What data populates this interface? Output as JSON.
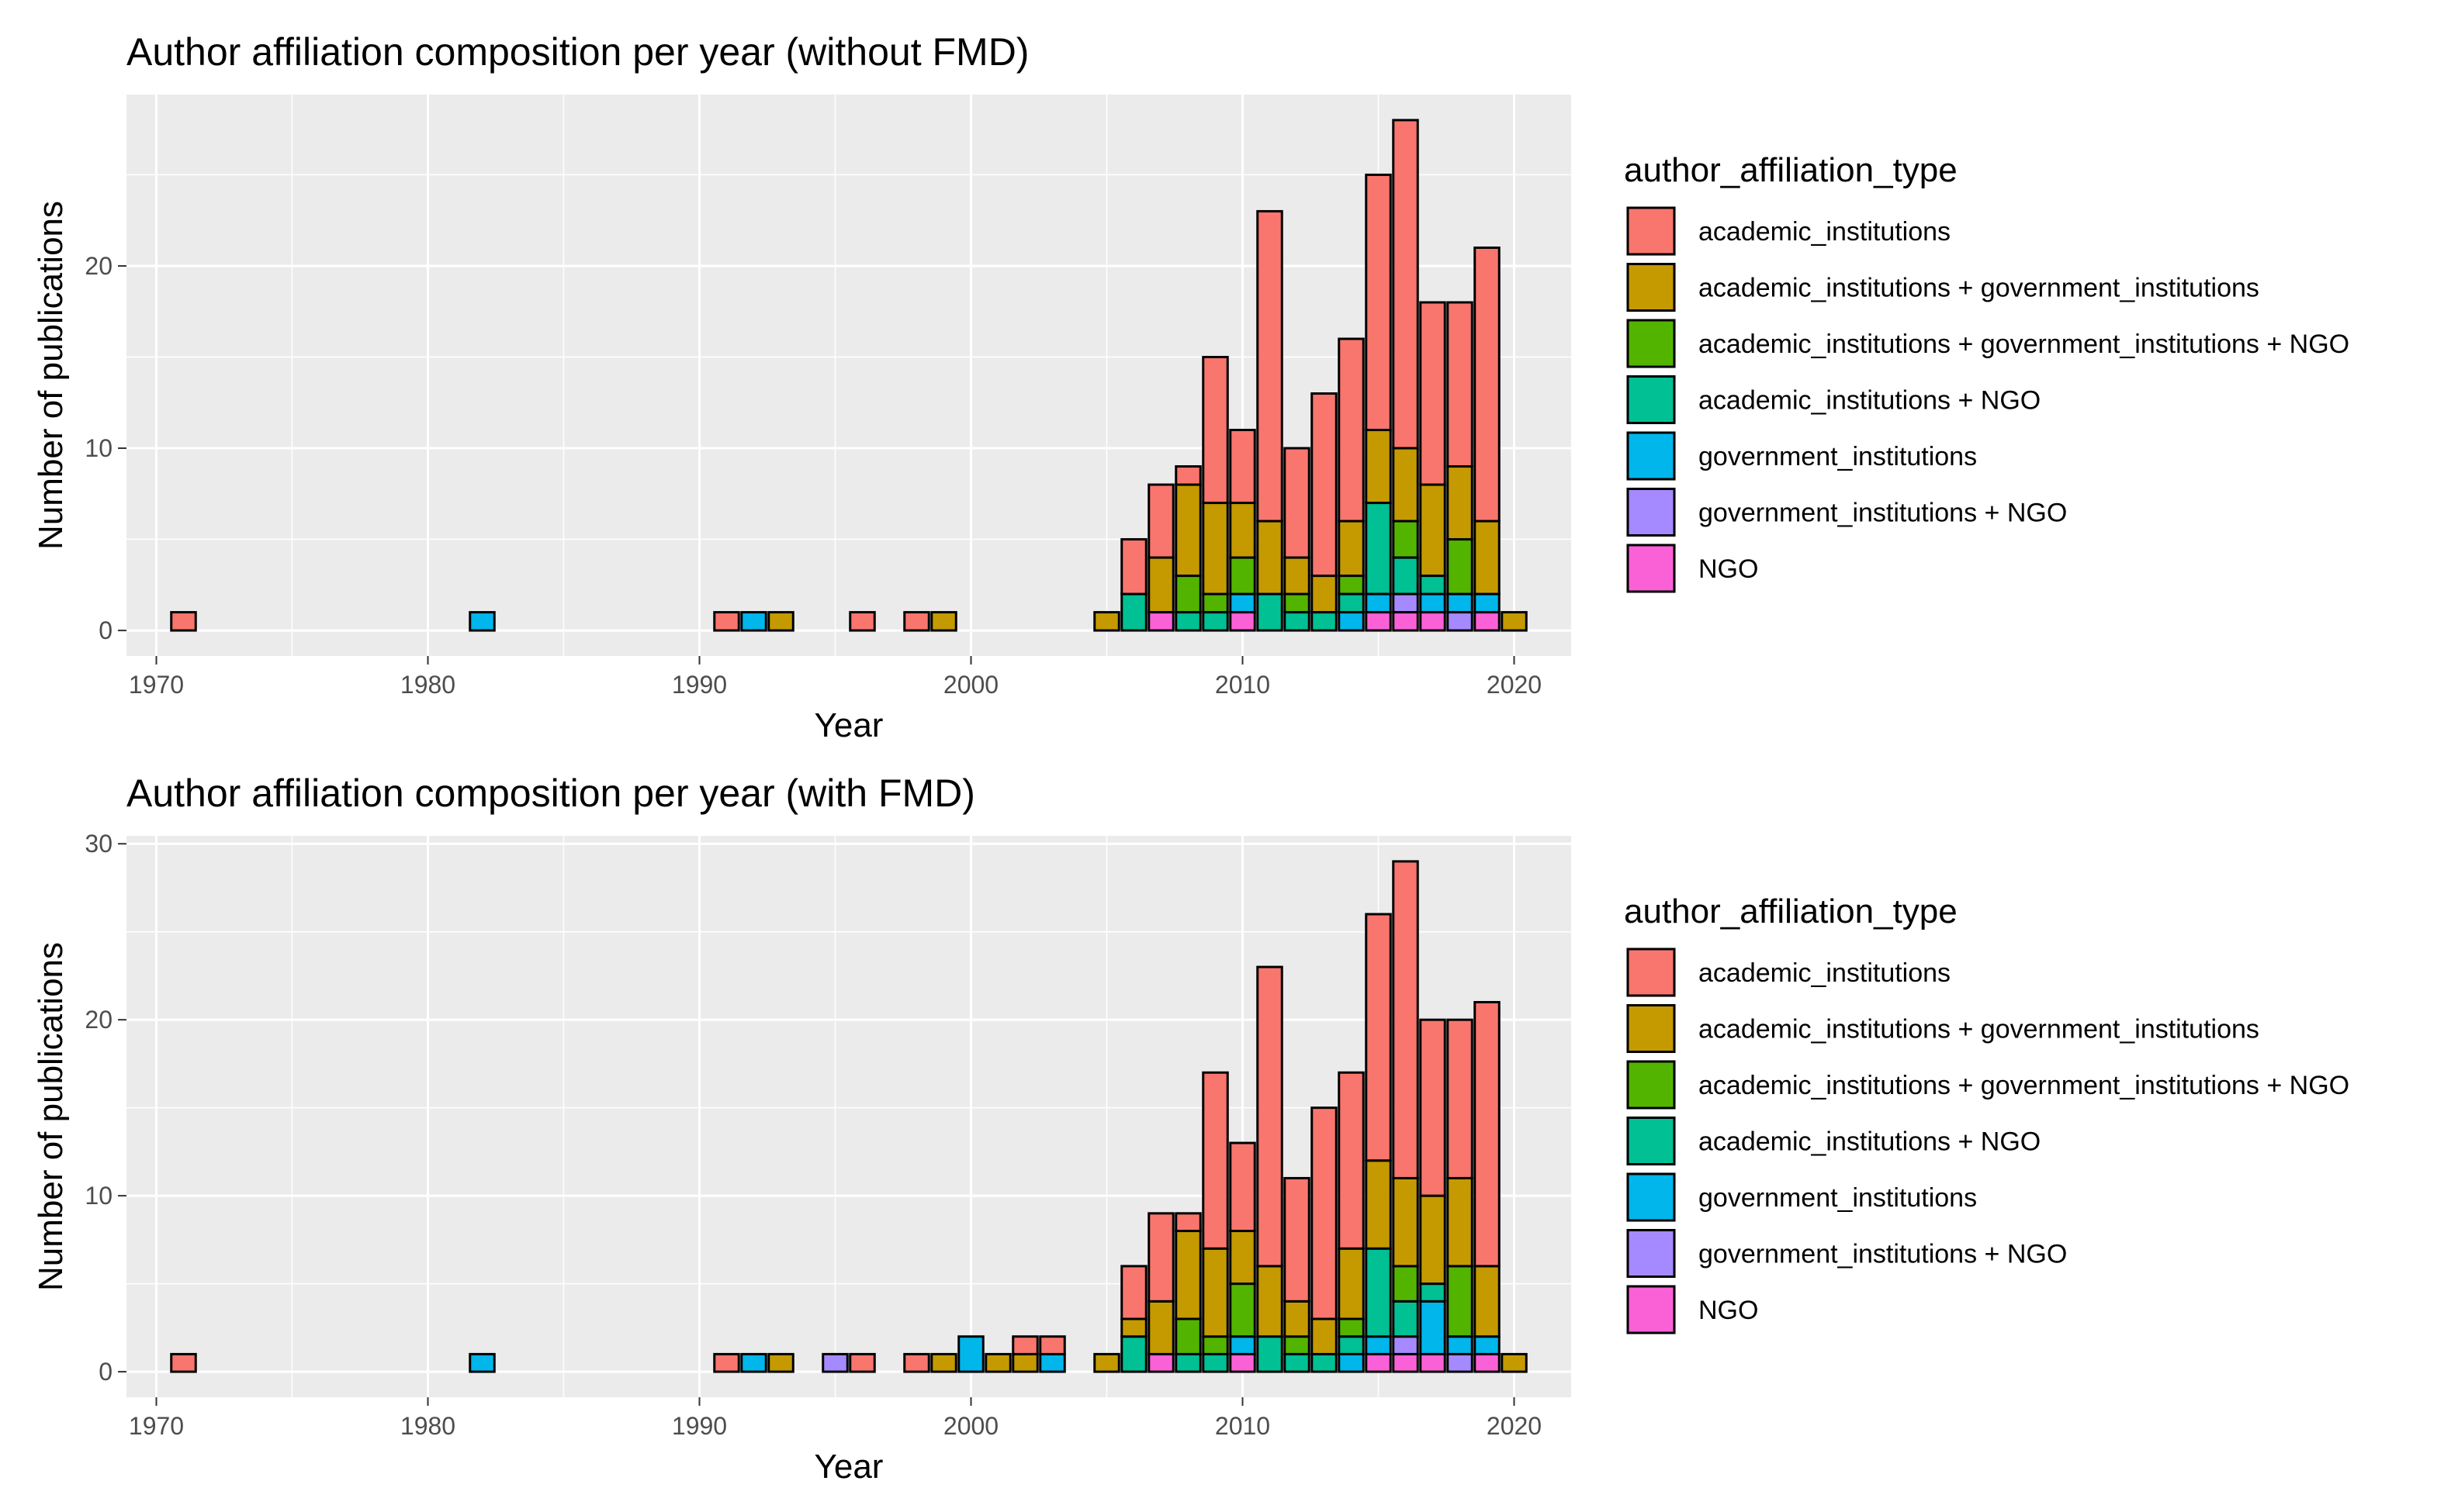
{
  "chart_data": [
    {
      "type": "bar",
      "stacked": true,
      "title": "Author affiliation composition per year (without FMD)",
      "xlabel": "Year",
      "ylabel": "Number of publications",
      "xlim": [
        1968.9,
        2022.1
      ],
      "ylim": [
        -1.4,
        29.4
      ],
      "xticks": [
        1970,
        1980,
        1990,
        2000,
        2010,
        2020
      ],
      "yticks": [
        0,
        10,
        20
      ],
      "grid": true,
      "legend": {
        "title": "author_affiliation_type",
        "placement": "right",
        "entries": [
          {
            "name": "academic_institutions",
            "color": "#F8766D"
          },
          {
            "name": "academic_institutions + government_institutions",
            "color": "#C49A00"
          },
          {
            "name": "academic_institutions + government_institutions + NGO",
            "color": "#53B400"
          },
          {
            "name": "academic_institutions + NGO",
            "color": "#00C094"
          },
          {
            "name": "government_institutions",
            "color": "#00B6EB"
          },
          {
            "name": "government_institutions + NGO",
            "color": "#A58AFF"
          },
          {
            "name": "NGO",
            "color": "#FB61D7"
          }
        ]
      },
      "series_order_bottom_to_top": [
        "NGO",
        "government_institutions + NGO",
        "government_institutions",
        "academic_institutions + NGO",
        "academic_institutions + government_institutions + NGO",
        "academic_institutions + government_institutions",
        "academic_institutions"
      ],
      "x": [
        1971,
        1982,
        1991,
        1992,
        1993,
        1996,
        1998,
        1999,
        2005,
        2006,
        2007,
        2008,
        2009,
        2010,
        2011,
        2012,
        2013,
        2014,
        2015,
        2016,
        2017,
        2018,
        2019,
        2020
      ],
      "series": [
        {
          "name": "academic_institutions",
          "values": [
            1,
            0,
            1,
            0,
            0,
            1,
            1,
            0,
            0,
            3,
            4,
            1,
            8,
            4,
            17,
            6,
            10,
            10,
            14,
            18,
            10,
            9,
            15,
            0
          ]
        },
        {
          "name": "academic_institutions + government_institutions",
          "values": [
            0,
            0,
            0,
            0,
            1,
            0,
            0,
            1,
            1,
            0,
            3,
            5,
            5,
            3,
            4,
            2,
            2,
            3,
            4,
            4,
            5,
            4,
            4,
            1
          ]
        },
        {
          "name": "academic_institutions + government_institutions + NGO",
          "values": [
            0,
            0,
            0,
            0,
            0,
            0,
            0,
            0,
            0,
            0,
            0,
            2,
            1,
            2,
            0,
            1,
            0,
            1,
            0,
            2,
            0,
            3,
            0,
            0
          ]
        },
        {
          "name": "academic_institutions + NGO",
          "values": [
            0,
            0,
            0,
            0,
            0,
            0,
            0,
            0,
            0,
            2,
            0,
            1,
            1,
            0,
            2,
            1,
            1,
            1,
            5,
            2,
            1,
            0,
            0,
            0
          ]
        },
        {
          "name": "government_institutions",
          "values": [
            0,
            1,
            0,
            1,
            0,
            0,
            0,
            0,
            0,
            0,
            0,
            0,
            0,
            1,
            0,
            0,
            0,
            1,
            1,
            0,
            1,
            1,
            1,
            0
          ]
        },
        {
          "name": "government_institutions + NGO",
          "values": [
            0,
            0,
            0,
            0,
            0,
            0,
            0,
            0,
            0,
            0,
            0,
            0,
            0,
            0,
            0,
            0,
            0,
            0,
            0,
            1,
            0,
            1,
            0,
            0
          ]
        },
        {
          "name": "NGO",
          "values": [
            0,
            0,
            0,
            0,
            0,
            0,
            0,
            0,
            0,
            0,
            1,
            0,
            0,
            1,
            0,
            0,
            0,
            0,
            1,
            1,
            1,
            0,
            1,
            0
          ]
        }
      ]
    },
    {
      "type": "bar",
      "stacked": true,
      "title": "Author affiliation composition per year (with FMD)",
      "xlabel": "Year",
      "ylabel": "Number of publications",
      "xlim": [
        1968.9,
        2022.1
      ],
      "ylim": [
        -1.45,
        30.45
      ],
      "xticks": [
        1970,
        1980,
        1990,
        2000,
        2010,
        2020
      ],
      "yticks": [
        0,
        10,
        20,
        30
      ],
      "grid": true,
      "legend": {
        "title": "author_affiliation_type",
        "placement": "right",
        "entries": [
          {
            "name": "academic_institutions",
            "color": "#F8766D"
          },
          {
            "name": "academic_institutions + government_institutions",
            "color": "#C49A00"
          },
          {
            "name": "academic_institutions + government_institutions + NGO",
            "color": "#53B400"
          },
          {
            "name": "academic_institutions + NGO",
            "color": "#00C094"
          },
          {
            "name": "government_institutions",
            "color": "#00B6EB"
          },
          {
            "name": "government_institutions + NGO",
            "color": "#A58AFF"
          },
          {
            "name": "NGO",
            "color": "#FB61D7"
          }
        ]
      },
      "series_order_bottom_to_top": [
        "NGO",
        "government_institutions + NGO",
        "government_institutions",
        "academic_institutions + NGO",
        "academic_institutions + government_institutions + NGO",
        "academic_institutions + government_institutions",
        "academic_institutions"
      ],
      "x": [
        1971,
        1982,
        1991,
        1992,
        1993,
        1995,
        1996,
        1998,
        1999,
        2000,
        2001,
        2002,
        2003,
        2005,
        2006,
        2007,
        2008,
        2009,
        2010,
        2011,
        2012,
        2013,
        2014,
        2015,
        2016,
        2017,
        2018,
        2019,
        2020
      ],
      "series": [
        {
          "name": "academic_institutions",
          "values": [
            1,
            0,
            1,
            0,
            0,
            0,
            1,
            1,
            0,
            0,
            0,
            1,
            1,
            0,
            3,
            5,
            1,
            10,
            5,
            17,
            7,
            12,
            10,
            14,
            18,
            10,
            9,
            15,
            0
          ]
        },
        {
          "name": "academic_institutions + government_institutions",
          "values": [
            0,
            0,
            0,
            0,
            1,
            0,
            0,
            0,
            1,
            0,
            1,
            1,
            0,
            1,
            1,
            3,
            5,
            5,
            3,
            4,
            2,
            2,
            4,
            5,
            5,
            5,
            5,
            4,
            1
          ]
        },
        {
          "name": "academic_institutions + government_institutions + NGO",
          "values": [
            0,
            0,
            0,
            0,
            0,
            0,
            0,
            0,
            0,
            0,
            0,
            0,
            0,
            0,
            0,
            0,
            2,
            1,
            3,
            0,
            1,
            0,
            1,
            0,
            2,
            0,
            4,
            0,
            0
          ]
        },
        {
          "name": "academic_institutions + NGO",
          "values": [
            0,
            0,
            0,
            0,
            0,
            0,
            0,
            0,
            0,
            0,
            0,
            0,
            0,
            0,
            2,
            0,
            1,
            1,
            0,
            2,
            1,
            1,
            1,
            5,
            2,
            1,
            0,
            0,
            0
          ]
        },
        {
          "name": "government_institutions",
          "values": [
            0,
            1,
            0,
            1,
            0,
            0,
            0,
            0,
            0,
            2,
            0,
            0,
            1,
            0,
            0,
            0,
            0,
            0,
            1,
            0,
            0,
            0,
            1,
            1,
            0,
            3,
            1,
            1,
            0
          ]
        },
        {
          "name": "government_institutions + NGO",
          "values": [
            0,
            0,
            0,
            0,
            0,
            1,
            0,
            0,
            0,
            0,
            0,
            0,
            0,
            0,
            0,
            0,
            0,
            0,
            0,
            0,
            0,
            0,
            0,
            0,
            1,
            0,
            1,
            0,
            0
          ]
        },
        {
          "name": "NGO",
          "values": [
            0,
            0,
            0,
            0,
            0,
            0,
            0,
            0,
            0,
            0,
            0,
            0,
            0,
            0,
            0,
            1,
            0,
            0,
            1,
            0,
            0,
            0,
            0,
            1,
            1,
            1,
            0,
            1,
            0
          ]
        }
      ]
    }
  ]
}
